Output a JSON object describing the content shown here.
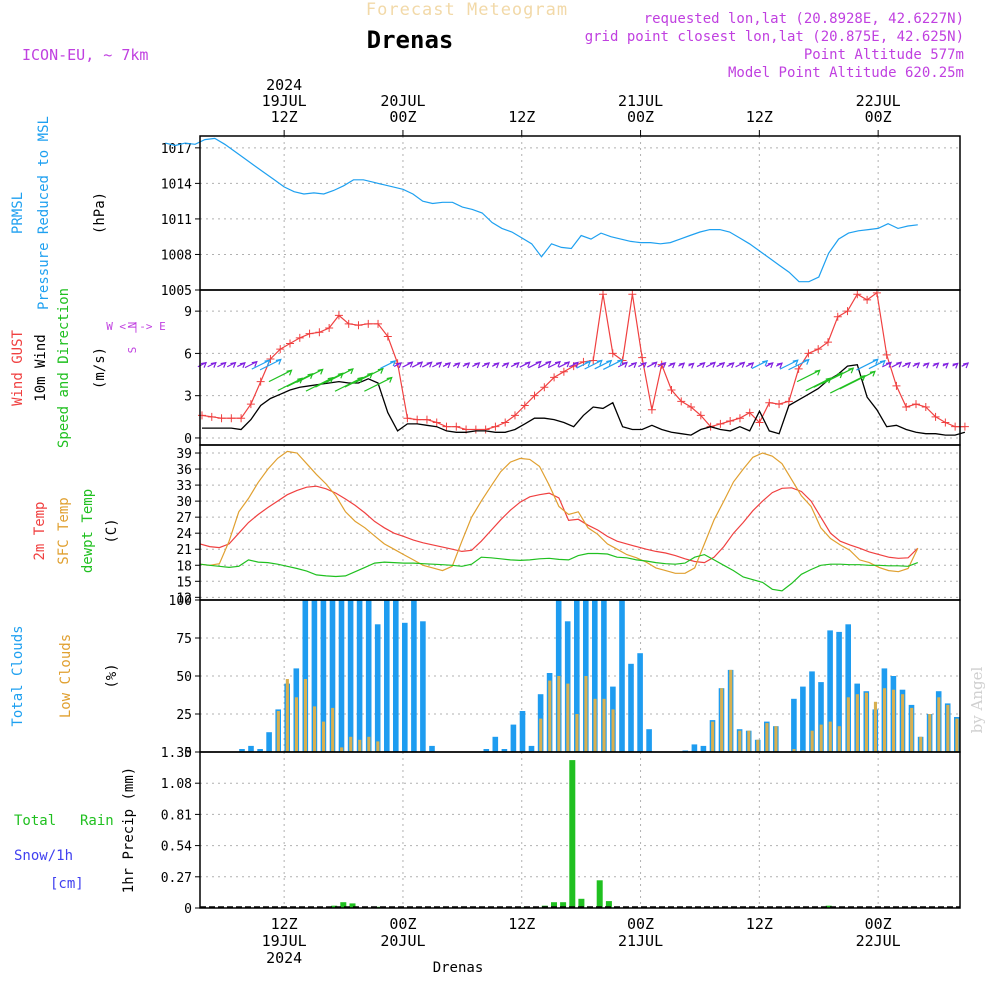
{
  "header": {
    "top_title": "Forecast Meteogram",
    "location": "Drenas",
    "model": "ICON-EU, ~ 7km",
    "requested": "requested lon,lat (20.8928E, 42.6227N)",
    "grid_point": "grid point closest lon,lat (20.875E, 42.625N)",
    "point_altitude": "Point Altitude 577m",
    "model_altitude": "Model Point Altitude 620.25m",
    "watermark": "by Angel",
    "footer": "Drenas"
  },
  "time_axis": {
    "top_labels": [
      {
        "t": 12,
        "lines": [
          "2024",
          "19JUL",
          "12Z"
        ]
      },
      {
        "t": 24,
        "lines": [
          "20JUL",
          "00Z"
        ]
      },
      {
        "t": 36,
        "lines": [
          "12Z"
        ]
      },
      {
        "t": 48,
        "lines": [
          "21JUL",
          "00Z"
        ]
      },
      {
        "t": 60,
        "lines": [
          "12Z"
        ]
      },
      {
        "t": 72,
        "lines": [
          "22JUL",
          "00Z"
        ]
      }
    ],
    "bottom_labels": [
      {
        "t": 12,
        "lines": [
          "12Z",
          "19JUL",
          "2024"
        ]
      },
      {
        "t": 24,
        "lines": [
          "00Z",
          "20JUL"
        ]
      },
      {
        "t": 36,
        "lines": [
          "12Z"
        ]
      },
      {
        "t": 48,
        "lines": [
          "00Z",
          "21JUL"
        ]
      },
      {
        "t": 60,
        "lines": [
          "12Z"
        ]
      },
      {
        "t": 72,
        "lines": [
          "00Z",
          "22JUL"
        ]
      }
    ]
  },
  "panels_text": {
    "pressure": {
      "l1": "PRMSL",
      "l2": "Pressure Reduced to MSL",
      "unit": "(hPa)"
    },
    "wind": {
      "l1": "Wind GUST",
      "l2": "10m Wind",
      "l3": "Speed and Direction",
      "unit": "(m/s)",
      "compass": [
        "N",
        "W <-|-> E",
        "S"
      ]
    },
    "temp": {
      "l1": "2m Temp",
      "l2": "SFC Temp",
      "l3": "dewpt Temp",
      "unit": "(C)"
    },
    "cloud": {
      "l1": "Total Clouds",
      "l2": "Low Clouds",
      "unit": "(%)"
    },
    "precip": {
      "l1": "Total",
      "l1b": "Rain",
      "l2": "Snow/1h",
      "l3": "[cm]",
      "unit": "1hr Precip (mm)"
    }
  },
  "colors": {
    "pressure": "#1ea0f0",
    "gust": "#f04040",
    "wind": "#000000",
    "t2m": "#f04040",
    "sfc": "#e0a030",
    "dew": "#20c020",
    "total_cloud": "#1e9cf0",
    "low_cloud": "#d8b050",
    "rain": "#20c020",
    "snow": "#4040f0",
    "arrow_low": "#8020e0",
    "arrow_mid": "#20a0f0",
    "arrow_high": "#20c020",
    "arrow_top": "#e0d020"
  },
  "chart_data": [
    {
      "type": "line",
      "title": "PRMSL Pressure Reduced to MSL",
      "ylabel": "(hPa)",
      "ylim": [
        1005,
        1018
      ],
      "yticks": [
        1005,
        1008,
        1011,
        1014,
        1017
      ],
      "x_unit": "hours from 19JUL 00Z",
      "x": [
        0,
        1,
        2,
        3,
        4,
        5,
        6,
        7,
        8,
        9,
        10,
        11,
        12,
        13,
        14,
        15,
        16,
        17,
        18,
        19,
        20,
        21,
        22,
        23,
        24,
        25,
        26,
        27,
        28,
        29,
        30,
        31,
        32,
        33,
        34,
        35,
        36,
        37,
        38,
        39,
        40,
        41,
        42,
        43,
        44,
        45,
        46,
        47,
        48,
        49,
        50,
        51,
        52,
        53,
        54,
        55,
        56,
        57,
        58,
        59,
        60,
        61,
        62,
        63,
        64,
        65,
        66,
        67,
        68,
        69,
        70,
        71,
        72,
        73,
        74,
        75,
        76
      ],
      "values": [
        1017.4,
        1017.2,
        1017.4,
        1017.3,
        1017.7,
        1017.8,
        1017.3,
        1016.7,
        1016.1,
        1015.5,
        1014.9,
        1014.3,
        1013.7,
        1013.3,
        1013.1,
        1013.2,
        1013.1,
        1013.4,
        1013.8,
        1014.3,
        1014.3,
        1014.1,
        1013.9,
        1013.7,
        1013.5,
        1013.1,
        1012.5,
        1012.3,
        1012.4,
        1012.4,
        1012.0,
        1011.8,
        1011.5,
        1010.7,
        1010.2,
        1009.9,
        1009.4,
        1008.9,
        1007.8,
        1008.9,
        1008.6,
        1008.5,
        1009.6,
        1009.3,
        1009.8,
        1009.5,
        1009.3,
        1009.1,
        1009.0,
        1009.0,
        1008.9,
        1009.0,
        1009.3,
        1009.6,
        1009.9,
        1010.1,
        1010.1,
        1009.9,
        1009.4,
        1008.9,
        1008.3,
        1007.7,
        1007.1,
        1006.5,
        1005.7,
        1005.7,
        1006.1,
        1008.1,
        1009.3,
        1009.8,
        1010.0,
        1010.1,
        1010.2,
        1010.6,
        1010.2,
        1010.4,
        1010.5
      ]
    },
    {
      "type": "line",
      "title": "Wind GUST / 10m Wind Speed and Direction",
      "ylabel": "(m/s)",
      "ylim": [
        -0.5,
        10.5
      ],
      "yticks": [
        0,
        3,
        6,
        9
      ],
      "series": [
        {
          "name": "Wind GUST",
          "values": [
            1.6,
            1.5,
            1.4,
            1.4,
            1.4,
            2.4,
            4.0,
            5.6,
            6.3,
            6.7,
            7.1,
            7.4,
            7.5,
            7.8,
            8.7,
            8.1,
            8.0,
            8.1,
            8.1,
            7.2,
            5.3,
            1.4,
            1.3,
            1.3,
            1.1,
            0.8,
            0.8,
            0.6,
            0.6,
            0.6,
            0.8,
            1.1,
            1.6,
            2.3,
            3.0,
            3.6,
            4.3,
            4.7,
            5.1,
            5.4,
            5.5,
            10.2,
            6.0,
            5.5,
            10.2,
            5.7,
            2.0,
            5.2,
            3.4,
            2.6,
            2.2,
            1.6,
            0.8,
            1.0,
            1.2,
            1.4,
            1.8,
            1.1,
            2.5,
            2.4,
            2.6,
            4.9,
            6.0,
            6.3,
            6.8,
            8.6,
            9.0,
            10.2,
            9.8,
            10.3,
            5.9,
            3.7,
            2.2,
            2.4,
            2.2,
            1.5,
            1.1,
            0.8,
            0.8
          ]
        },
        {
          "name": "10m Wind",
          "values": [
            0.7,
            0.7,
            0.7,
            0.7,
            0.6,
            1.3,
            2.3,
            2.8,
            3.1,
            3.4,
            3.6,
            3.7,
            3.8,
            3.9,
            4.0,
            3.9,
            3.9,
            4.2,
            3.9,
            1.8,
            0.5,
            1.0,
            1.0,
            0.9,
            0.8,
            0.5,
            0.4,
            0.4,
            0.5,
            0.5,
            0.4,
            0.4,
            0.6,
            1.0,
            1.4,
            1.4,
            1.3,
            1.1,
            0.8,
            1.6,
            2.2,
            2.1,
            2.5,
            0.8,
            0.6,
            0.6,
            0.9,
            0.6,
            0.4,
            0.3,
            0.2,
            0.6,
            0.8,
            0.6,
            0.5,
            0.8,
            0.5,
            1.9,
            0.5,
            0.3,
            2.3,
            2.7,
            3.1,
            3.5,
            4.1,
            4.5,
            5.1,
            5.2,
            2.9,
            2.0,
            0.8,
            0.9,
            0.6,
            0.4,
            0.3,
            0.3,
            0.2,
            0.2,
            0.4
          ]
        }
      ]
    },
    {
      "type": "line",
      "title": "2m Temp / SFC Temp / dewpt Temp",
      "ylabel": "(C)",
      "ylim": [
        11.5,
        40.5
      ],
      "yticks": [
        12,
        15,
        18,
        21,
        24,
        27,
        30,
        33,
        36,
        39
      ],
      "series": [
        {
          "name": "2m Temp",
          "values": [
            22.0,
            21.5,
            21.3,
            22.0,
            24.0,
            26.0,
            27.5,
            28.8,
            30.0,
            31.2,
            32.0,
            32.6,
            32.8,
            32.3,
            31.5,
            30.4,
            29.2,
            27.8,
            26.2,
            25.0,
            24.0,
            23.4,
            22.7,
            22.2,
            21.8,
            21.4,
            21.0,
            20.6,
            20.8,
            22.5,
            24.5,
            26.5,
            28.3,
            29.8,
            30.8,
            31.2,
            31.5,
            30.6,
            26.4,
            26.6,
            25.5,
            24.6,
            23.4,
            22.5,
            22.0,
            21.5,
            21.0,
            20.6,
            20.3,
            19.8,
            19.2,
            18.7,
            18.5,
            19.5,
            21.5,
            24.0,
            26.0,
            28.2,
            30.0,
            31.6,
            32.4,
            32.5,
            31.8,
            30.0,
            27.0,
            24.0,
            22.5,
            21.8,
            21.2,
            20.5,
            20.0,
            19.5,
            19.3,
            19.4,
            21.2
          ]
        },
        {
          "name": "SFC Temp",
          "values": [
            18.2,
            18.0,
            18.3,
            22.5,
            28.0,
            30.5,
            33.5,
            36.0,
            38.0,
            39.3,
            39.0,
            37.0,
            35.0,
            33.2,
            31.0,
            28.0,
            26.2,
            25.0,
            23.5,
            22.0,
            21.0,
            20.0,
            19.0,
            18.0,
            17.5,
            17.0,
            17.8,
            22.5,
            27.0,
            30.0,
            32.8,
            35.5,
            37.3,
            38.0,
            37.8,
            36.5,
            33.0,
            29.0,
            27.5,
            28.0,
            25.0,
            23.8,
            22.0,
            21.0,
            20.0,
            19.4,
            18.6,
            17.5,
            17.0,
            16.5,
            16.5,
            17.5,
            22.0,
            26.5,
            30.0,
            33.6,
            36.0,
            38.2,
            39.0,
            38.4,
            37.0,
            34.0,
            31.0,
            29.0,
            25.0,
            23.0,
            21.8,
            20.8,
            19.0,
            18.5,
            17.6,
            17.0,
            16.8,
            17.4,
            21.2
          ]
        },
        {
          "name": "dewpt Temp",
          "values": [
            18.2,
            18.0,
            17.8,
            17.6,
            17.8,
            19.0,
            18.6,
            18.5,
            18.2,
            17.8,
            17.4,
            16.9,
            16.2,
            16.0,
            15.9,
            16.0,
            16.8,
            17.6,
            18.4,
            18.6,
            18.5,
            18.4,
            18.4,
            18.3,
            18.2,
            18.1,
            18.0,
            17.8,
            18.2,
            19.5,
            19.4,
            19.2,
            19.0,
            18.9,
            19.0,
            19.2,
            19.3,
            19.1,
            19.0,
            19.8,
            20.2,
            20.2,
            20.1,
            19.5,
            19.4,
            19.0,
            18.8,
            18.5,
            18.3,
            18.2,
            18.4,
            19.5,
            20.0,
            19.0,
            18.0,
            17.0,
            15.8,
            15.3,
            14.8,
            13.5,
            13.2,
            14.6,
            16.3,
            17.2,
            18.0,
            18.2,
            18.2,
            18.1,
            18.1,
            18.0,
            18.0,
            17.9,
            17.9,
            17.8,
            18.5
          ]
        }
      ]
    },
    {
      "type": "bar",
      "title": "Total Clouds / Low Clouds",
      "ylabel": "(%)",
      "ylim": [
        0,
        100
      ],
      "yticks": [
        0,
        25,
        50,
        75,
        100
      ],
      "series": [
        {
          "name": "Total Clouds",
          "values": [
            0,
            0,
            0,
            0,
            2,
            4,
            2,
            13,
            28,
            45,
            55,
            100,
            100,
            100,
            100,
            100,
            100,
            100,
            100,
            84,
            100,
            100,
            85,
            100,
            86,
            4,
            0,
            0,
            0,
            0,
            0,
            2,
            10,
            2,
            18,
            27,
            4,
            38,
            52,
            100,
            86,
            100,
            100,
            100,
            100,
            43,
            100,
            58,
            65,
            15,
            0,
            0,
            0,
            1,
            5,
            4,
            21,
            42,
            54,
            15,
            14,
            8,
            20,
            17,
            0,
            35,
            43,
            53,
            46,
            80,
            79,
            84,
            45,
            40,
            28,
            55,
            50,
            41,
            31,
            10,
            25,
            40,
            32,
            23
          ]
        },
        {
          "name": "Low Clouds",
          "values": [
            0,
            0,
            0,
            0,
            0,
            0,
            0,
            0,
            27,
            48,
            36,
            48,
            30,
            20,
            29,
            3,
            10,
            8,
            10,
            7,
            0,
            0,
            0,
            0,
            0,
            0,
            0,
            0,
            0,
            0,
            0,
            0,
            0,
            0,
            0,
            0,
            0,
            22,
            47,
            50,
            45,
            25,
            50,
            35,
            35,
            28,
            0,
            0,
            0,
            0,
            0,
            0,
            0,
            0,
            0,
            0,
            20,
            42,
            54,
            14,
            14,
            8,
            19,
            17,
            0,
            2,
            1,
            14,
            18,
            20,
            17,
            36,
            38,
            39,
            33,
            42,
            41,
            38,
            29,
            10,
            25,
            36,
            31,
            22
          ]
        }
      ]
    },
    {
      "type": "bar",
      "title": "1hr Precip",
      "ylabel": "1hr Precip (mm)",
      "ylim": [
        0,
        1.35
      ],
      "yticks": [
        0,
        0.27,
        0.54,
        0.81,
        1.08,
        1.35
      ],
      "series": [
        {
          "name": "Total Rain",
          "values": [
            0,
            0,
            0,
            0,
            0,
            0,
            0,
            0,
            0,
            0,
            0,
            0,
            0,
            0,
            0.02,
            0.05,
            0.04,
            0,
            0,
            0.01,
            0,
            0,
            0,
            0,
            0,
            0,
            0,
            0,
            0,
            0,
            0,
            0,
            0,
            0,
            0,
            0.01,
            0,
            0.02,
            0.05,
            0.05,
            1.28,
            0.08,
            0,
            0.24,
            0.06,
            0,
            0,
            0,
            0,
            0,
            0,
            0,
            0,
            0,
            0,
            0,
            0,
            0,
            0,
            0,
            0,
            0,
            0,
            0,
            0,
            0,
            0,
            0,
            0.02,
            0,
            0,
            0,
            0,
            0,
            0,
            0,
            0,
            0,
            0,
            0,
            0,
            0,
            0
          ]
        },
        {
          "name": "Snow/1h",
          "values": []
        }
      ]
    }
  ]
}
